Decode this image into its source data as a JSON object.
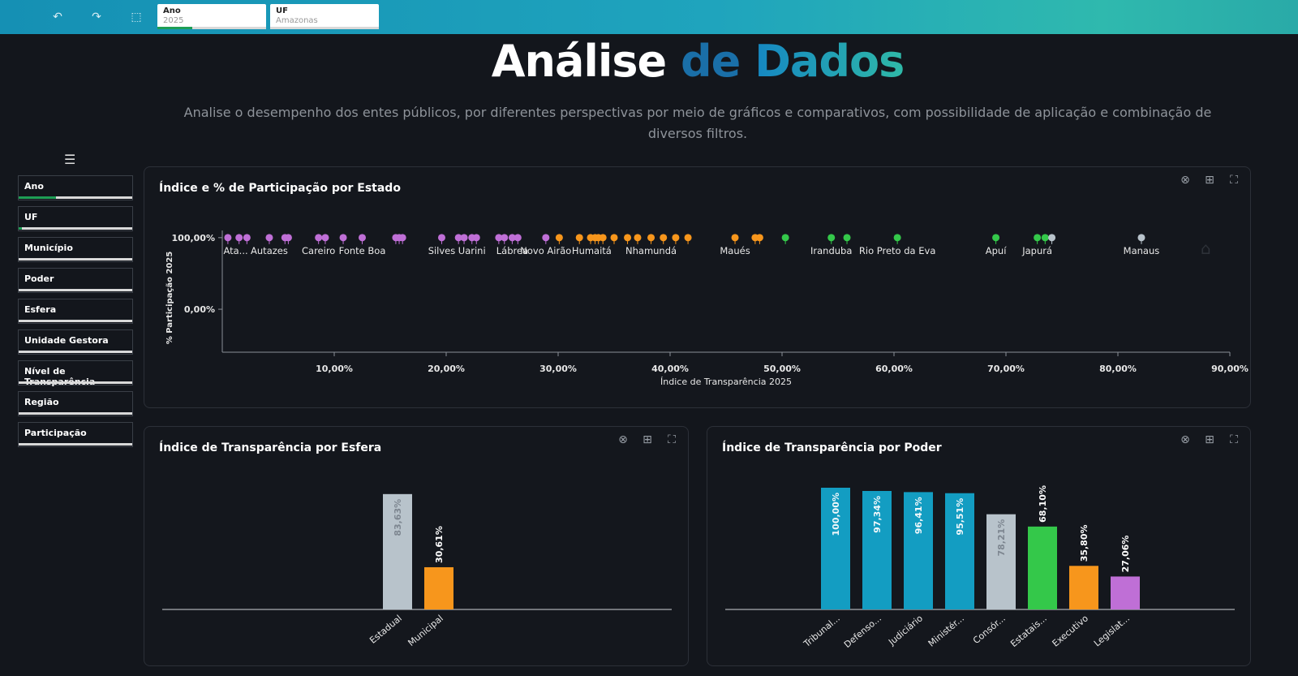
{
  "topbar": {
    "filters": [
      {
        "label": "Ano",
        "value": "2025",
        "progress": 0.32
      },
      {
        "label": "UF",
        "value": "Amazonas",
        "progress": 0.0
      }
    ]
  },
  "header": {
    "title_w1": "Análise",
    "title_w2": "de",
    "title_w3": "Dados",
    "subtitle": "Analise o desempenho dos entes públicos, por diferentes perspectivas por meio de gráficos e comparativos, com possibilidade de aplicação e combinação de diversos filtros."
  },
  "sidebar": {
    "filters": [
      {
        "label": "Ano",
        "progress": 0.33
      },
      {
        "label": "UF",
        "progress": 0.03
      },
      {
        "label": "Município",
        "progress": 0.0
      },
      {
        "label": "Poder",
        "progress": 0.0
      },
      {
        "label": "Esfera",
        "progress": 0.0
      },
      {
        "label": "Unidade Gestora",
        "progress": 0.0
      },
      {
        "label": "Nível de Transparência",
        "progress": 0.0
      },
      {
        "label": "Região",
        "progress": 0.0
      },
      {
        "label": "Participação",
        "progress": 0.0
      }
    ]
  },
  "panels": {
    "scatter_title": "Índice e % de Participação por Estado",
    "esfera_title": "Índice de Transparência por Esfera",
    "poder_title": "Índice de Transparência por Poder"
  },
  "colors": {
    "purple": "#bf6fd6",
    "orange": "#f7961c",
    "green": "#34c84a",
    "gray": "#b8c3cb",
    "teal": "#139dc2"
  },
  "chart_data": [
    {
      "type": "scatter",
      "xlabel": "Índice de Transparência 2025",
      "ylabel": "% Participação 2025",
      "xticks": [
        10,
        20,
        30,
        40,
        50,
        60,
        70,
        80,
        90
      ],
      "xtick_labels": [
        "10,00%",
        "20,00%",
        "30,00%",
        "40,00%",
        "50,00%",
        "60,00%",
        "70,00%",
        "80,00%",
        "90,00%"
      ],
      "yticks": [
        100,
        0
      ],
      "ytick_labels": [
        "100,00%",
        "0,00%"
      ],
      "xlim": [
        0,
        90
      ],
      "ylim": [
        -60,
        110
      ],
      "points": [
        {
          "x": 0.5,
          "y": 100,
          "c": "purple"
        },
        {
          "x": 1.5,
          "y": 100,
          "c": "purple"
        },
        {
          "x": 2.2,
          "y": 100,
          "c": "purple"
        },
        {
          "x": 4.2,
          "y": 100,
          "c": "purple"
        },
        {
          "x": 5.6,
          "y": 100,
          "c": "purple"
        },
        {
          "x": 5.9,
          "y": 100,
          "c": "purple"
        },
        {
          "x": 8.6,
          "y": 100,
          "c": "purple"
        },
        {
          "x": 9.2,
          "y": 100,
          "c": "purple"
        },
        {
          "x": 10.8,
          "y": 100,
          "c": "purple"
        },
        {
          "x": 12.5,
          "y": 100,
          "c": "purple"
        },
        {
          "x": 15.5,
          "y": 100,
          "c": "purple"
        },
        {
          "x": 15.8,
          "y": 100,
          "c": "purple"
        },
        {
          "x": 16.1,
          "y": 100,
          "c": "purple"
        },
        {
          "x": 19.6,
          "y": 100,
          "c": "purple"
        },
        {
          "x": 21.1,
          "y": 100,
          "c": "purple"
        },
        {
          "x": 21.6,
          "y": 100,
          "c": "purple"
        },
        {
          "x": 22.3,
          "y": 100,
          "c": "purple"
        },
        {
          "x": 22.7,
          "y": 100,
          "c": "purple"
        },
        {
          "x": 24.7,
          "y": 100,
          "c": "purple"
        },
        {
          "x": 25.2,
          "y": 100,
          "c": "purple"
        },
        {
          "x": 25.9,
          "y": 100,
          "c": "purple"
        },
        {
          "x": 26.4,
          "y": 100,
          "c": "purple"
        },
        {
          "x": 28.9,
          "y": 100,
          "c": "purple"
        },
        {
          "x": 30.1,
          "y": 100,
          "c": "orange"
        },
        {
          "x": 31.9,
          "y": 100,
          "c": "orange"
        },
        {
          "x": 32.9,
          "y": 100,
          "c": "orange"
        },
        {
          "x": 33.3,
          "y": 100,
          "c": "orange"
        },
        {
          "x": 33.6,
          "y": 100,
          "c": "orange"
        },
        {
          "x": 34.0,
          "y": 100,
          "c": "orange"
        },
        {
          "x": 35.0,
          "y": 100,
          "c": "orange"
        },
        {
          "x": 36.2,
          "y": 100,
          "c": "orange"
        },
        {
          "x": 37.1,
          "y": 100,
          "c": "orange"
        },
        {
          "x": 38.3,
          "y": 100,
          "c": "orange"
        },
        {
          "x": 39.4,
          "y": 100,
          "c": "orange"
        },
        {
          "x": 40.5,
          "y": 100,
          "c": "orange"
        },
        {
          "x": 41.6,
          "y": 100,
          "c": "orange"
        },
        {
          "x": 45.8,
          "y": 100,
          "c": "orange"
        },
        {
          "x": 47.6,
          "y": 100,
          "c": "orange"
        },
        {
          "x": 48.0,
          "y": 100,
          "c": "orange"
        },
        {
          "x": 50.3,
          "y": 100,
          "c": "green"
        },
        {
          "x": 54.4,
          "y": 100,
          "c": "green"
        },
        {
          "x": 55.8,
          "y": 100,
          "c": "green"
        },
        {
          "x": 60.3,
          "y": 100,
          "c": "green"
        },
        {
          "x": 69.1,
          "y": 100,
          "c": "green"
        },
        {
          "x": 72.8,
          "y": 100,
          "c": "green"
        },
        {
          "x": 73.5,
          "y": 100,
          "c": "green"
        },
        {
          "x": 74.1,
          "y": 100,
          "c": "gray"
        },
        {
          "x": 82.1,
          "y": 100,
          "c": "gray"
        }
      ],
      "labels": [
        {
          "x": 1.2,
          "text": "Ata..."
        },
        {
          "x": 4.2,
          "text": "Autazes"
        },
        {
          "x": 8.6,
          "text": "Careiro"
        },
        {
          "x": 12.5,
          "text": "Fonte Boa"
        },
        {
          "x": 19.6,
          "text": "Silves"
        },
        {
          "x": 22.3,
          "text": "Uarini"
        },
        {
          "x": 25.9,
          "text": "Lábrea"
        },
        {
          "x": 28.9,
          "text": "Novo Airão"
        },
        {
          "x": 33.0,
          "text": "Humaitá"
        },
        {
          "x": 38.3,
          "text": "Nhamundá"
        },
        {
          "x": 45.8,
          "text": "Maués"
        },
        {
          "x": 54.4,
          "text": "Iranduba"
        },
        {
          "x": 60.3,
          "text": "Rio Preto da Eva"
        },
        {
          "x": 69.1,
          "text": "Apuí"
        },
        {
          "x": 72.8,
          "text": "Japurá"
        },
        {
          "x": 82.1,
          "text": "Manaus"
        }
      ]
    },
    {
      "type": "bar",
      "categories": [
        "Estadual",
        "Municipal"
      ],
      "values": [
        83.63,
        30.61
      ],
      "value_labels": [
        "83,63%",
        "30,61%"
      ],
      "colors": [
        "gray",
        "orange"
      ],
      "ylim": [
        0,
        100
      ]
    },
    {
      "type": "bar",
      "categories": [
        "Tribunal...",
        "Defenso...",
        "Judiciário",
        "Ministér...",
        "Consór...",
        "Estatais...",
        "Executivo",
        "Legislat..."
      ],
      "values": [
        100.0,
        97.34,
        96.41,
        95.51,
        78.21,
        68.1,
        35.8,
        27.06
      ],
      "value_labels": [
        "100,00%",
        "97,34%",
        "96,41%",
        "95,51%",
        "78,21%",
        "68,10%",
        "35,80%",
        "27,06%"
      ],
      "colors": [
        "teal",
        "teal",
        "teal",
        "teal",
        "gray",
        "green",
        "orange",
        "purple"
      ],
      "ylim": [
        0,
        100
      ]
    }
  ]
}
